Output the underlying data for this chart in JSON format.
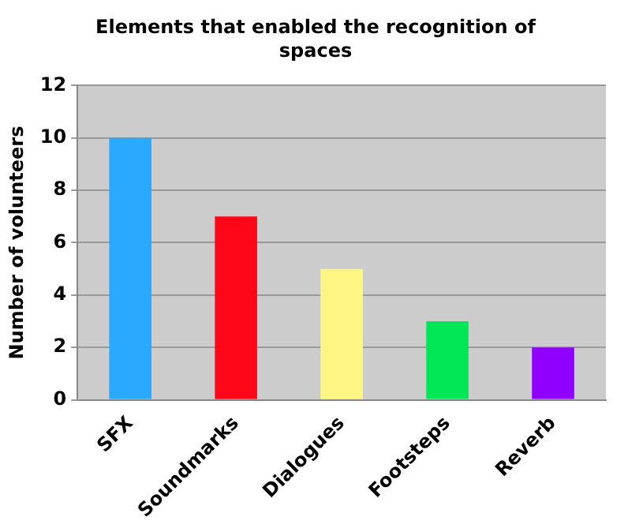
{
  "chart_data": {
    "type": "bar",
    "title": "Elements that enabled the recognition of spaces",
    "ylabel": "Number of volunteers",
    "categories": [
      "SFX",
      "Soundmarks",
      "Dialogues",
      "Footsteps",
      "Reverb"
    ],
    "values": [
      10,
      7,
      5,
      3,
      2
    ],
    "colors": [
      "#29a9ff",
      "#ff0618",
      "#fff582",
      "#00e756",
      "#8f00ff"
    ],
    "ylim": [
      0,
      12
    ],
    "yticks": [
      0,
      2,
      4,
      6,
      8,
      10,
      12
    ],
    "grid": "y",
    "legend": false
  }
}
